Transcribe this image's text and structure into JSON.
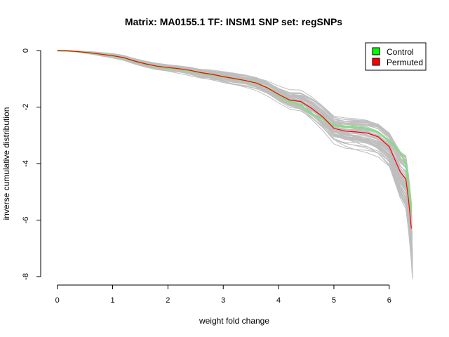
{
  "chart_data": {
    "type": "line",
    "title": "Matrix: MA0155.1 TF: INSM1 SNP set: regSNPs",
    "xlabel": "weight fold change",
    "ylabel": "inverse cumulative distribution",
    "xlim": [
      -0.3,
      6.7
    ],
    "ylim": [
      -8.3,
      0.3
    ],
    "x_ticks": [
      0,
      1,
      2,
      3,
      4,
      5,
      6
    ],
    "y_ticks": [
      0,
      -2,
      -4,
      -6,
      -8
    ],
    "x_tick_labels": [
      "0",
      "1",
      "2",
      "3",
      "4",
      "5",
      "6"
    ],
    "y_tick_labels": [
      "0",
      "-2",
      "-4",
      "-6",
      "-8"
    ],
    "legend": {
      "position": "top-right",
      "entries": [
        {
          "label": "Control",
          "color": "#00ff00"
        },
        {
          "label": "Permuted",
          "color": "#ff0000"
        }
      ]
    },
    "series": [
      {
        "name": "Control",
        "color": "#7fe07f",
        "x": [
          0,
          0.2,
          0.4,
          0.6,
          0.8,
          1.0,
          1.2,
          1.4,
          1.6,
          1.8,
          2.0,
          2.2,
          2.4,
          2.6,
          2.8,
          3.0,
          3.2,
          3.4,
          3.6,
          3.8,
          4.0,
          4.2,
          4.4,
          4.6,
          4.8,
          5.0,
          5.2,
          5.4,
          5.6,
          5.8,
          6.0,
          6.2,
          6.3,
          6.35,
          6.4
        ],
        "values": [
          0,
          -0.01,
          -0.04,
          -0.08,
          -0.13,
          -0.18,
          -0.26,
          -0.38,
          -0.48,
          -0.56,
          -0.62,
          -0.66,
          -0.72,
          -0.8,
          -0.86,
          -0.93,
          -1.0,
          -1.06,
          -1.14,
          -1.3,
          -1.58,
          -1.8,
          -1.92,
          -2.25,
          -2.42,
          -2.65,
          -2.7,
          -2.72,
          -2.75,
          -2.9,
          -3.2,
          -3.6,
          -4.0,
          -4.8,
          -5.7
        ]
      },
      {
        "name": "Permuted",
        "color": "#ff0000",
        "x": [
          0,
          0.2,
          0.4,
          0.6,
          0.8,
          1.0,
          1.2,
          1.4,
          1.6,
          1.8,
          2.0,
          2.2,
          2.4,
          2.6,
          2.8,
          3.0,
          3.2,
          3.4,
          3.6,
          3.8,
          4.0,
          4.2,
          4.4,
          4.6,
          4.8,
          5.0,
          5.2,
          5.4,
          5.6,
          5.8,
          6.0,
          6.2,
          6.3,
          6.35,
          6.4
        ],
        "values": [
          0,
          -0.01,
          -0.04,
          -0.08,
          -0.13,
          -0.18,
          -0.25,
          -0.37,
          -0.47,
          -0.55,
          -0.6,
          -0.64,
          -0.7,
          -0.78,
          -0.84,
          -0.92,
          -0.99,
          -1.06,
          -1.15,
          -1.32,
          -1.55,
          -1.75,
          -1.8,
          -2.05,
          -2.35,
          -2.75,
          -2.85,
          -2.88,
          -2.92,
          -3.05,
          -3.4,
          -4.3,
          -4.55,
          -5.3,
          -6.3
        ]
      }
    ],
    "background_curves": {
      "color": "#bebebe",
      "count": 60
    }
  }
}
